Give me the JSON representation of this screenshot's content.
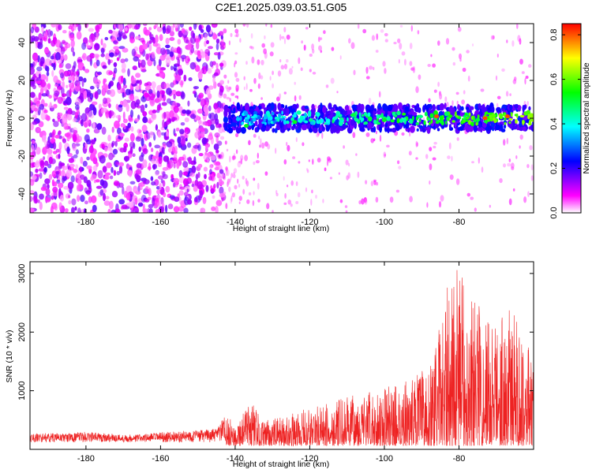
{
  "title": "C2E1.2025.039.03.51.G05",
  "chart_data": [
    {
      "type": "heatmap",
      "xlabel": "Height of straight line (km)",
      "ylabel": "Frequency (Hz)",
      "xlim": [
        -195,
        -60
      ],
      "ylim": [
        -50,
        50
      ],
      "xticks": [
        -180,
        -160,
        -140,
        -120,
        -100,
        -80
      ],
      "yticks": [
        -40,
        -20,
        0,
        20,
        40
      ],
      "grid": false,
      "colorbar": {
        "label": "Normalized spectral amplitude",
        "range": [
          0,
          0.85
        ],
        "ticks": [
          0.0,
          0.2,
          0.4,
          0.6,
          0.8
        ],
        "colormap": [
          "#ffffff",
          "#ff00ff",
          "#8000ff",
          "#0000ff",
          "#0080ff",
          "#00ffff",
          "#00ff80",
          "#00ff00",
          "#80ff00",
          "#ffff00",
          "#ff8000",
          "#ff0000"
        ]
      },
      "signal_band": {
        "x_start": -143,
        "x_end": -60,
        "freq_center_hz": 0,
        "half_width_hz": 5
      },
      "noise_region": {
        "x_start": -195,
        "x_end": -143
      }
    },
    {
      "type": "line",
      "xlabel": "Height of straight line (km)",
      "ylabel": "SNR (10 * v/v)",
      "xlim": [
        -195,
        -60
      ],
      "ylim": [
        0,
        3200
      ],
      "xticks": [
        -180,
        -160,
        -140,
        -120,
        -100,
        -80
      ],
      "yticks": [
        1000,
        2000,
        3000
      ],
      "grid": false,
      "color": "#ee2222",
      "series": [
        {
          "x": [
            -195,
            -190,
            -185,
            -180,
            -175,
            -170,
            -165,
            -160,
            -155,
            -150,
            -145,
            -143,
            -140,
            -137,
            -135,
            -133,
            -130,
            -125,
            -120,
            -115,
            -110,
            -105,
            -100,
            -95,
            -90,
            -87,
            -85,
            -83,
            -80,
            -78,
            -75,
            -72,
            -70,
            -67,
            -65,
            -62,
            -60
          ],
          "y": [
            260,
            280,
            270,
            300,
            280,
            250,
            260,
            290,
            310,
            330,
            350,
            560,
            480,
            720,
            810,
            480,
            520,
            600,
            720,
            780,
            900,
            960,
            1050,
            1150,
            1350,
            1500,
            2200,
            2800,
            3200,
            2700,
            2600,
            2300,
            2250,
            2500,
            2300,
            2000,
            1300
          ]
        }
      ]
    }
  ]
}
